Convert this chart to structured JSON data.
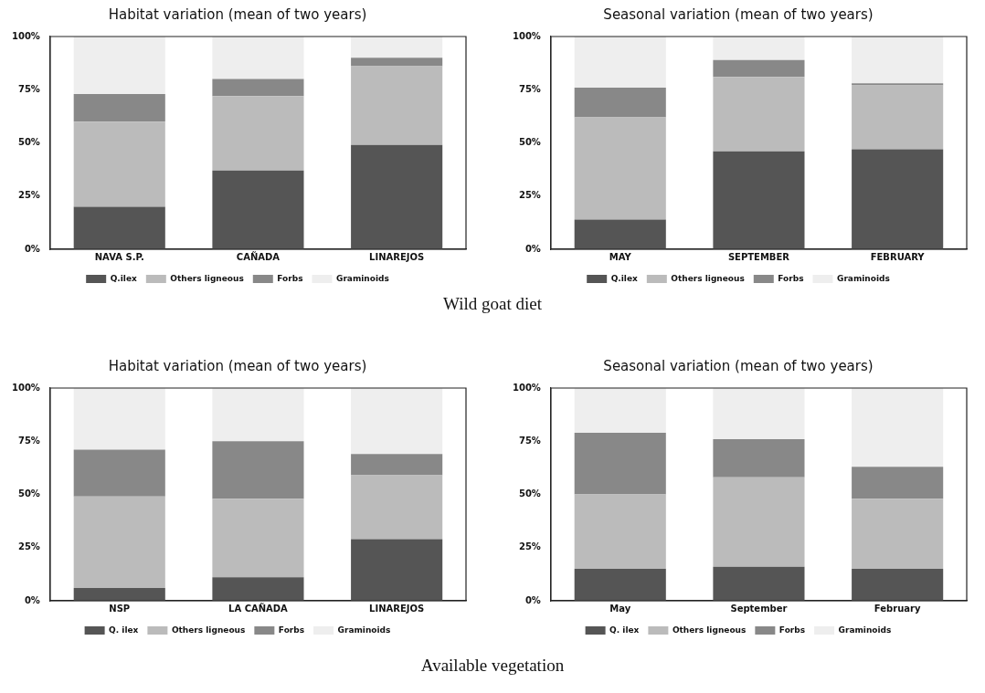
{
  "chart_data": [
    {
      "type": "bar",
      "title": "Habitat variation (mean of two years)",
      "categories": [
        "NAVA S.P.",
        "CAÑADA",
        "LINAREJOS"
      ],
      "stacked": true,
      "ylim": [
        0,
        100
      ],
      "yticks": [
        {
          "value": 0,
          "label": "0%"
        },
        {
          "value": 25,
          "label": "25%"
        },
        {
          "value": 50,
          "label": "50%"
        },
        {
          "value": 75,
          "label": "75%"
        },
        {
          "value": 100,
          "label": "100%"
        }
      ],
      "grid": false,
      "legend": "bottom",
      "annotations": [
        "Wild goat diet"
      ],
      "series": [
        {
          "name": "Q.ilex",
          "color": "#555555",
          "values": [
            20,
            37,
            49
          ]
        },
        {
          "name": "Others ligneous",
          "color": "#bbbbbb",
          "values": [
            40,
            35,
            37
          ]
        },
        {
          "name": "Forbs",
          "color": "#888888",
          "values": [
            13,
            8,
            4
          ]
        },
        {
          "name": "Graminoids",
          "color": "#eeeeee",
          "values": [
            27,
            20,
            10
          ]
        }
      ]
    },
    {
      "type": "bar",
      "title": "Seasonal variation (mean of two years)",
      "categories": [
        "MAY",
        "SEPTEMBER",
        "FEBRUARY"
      ],
      "stacked": true,
      "ylim": [
        0,
        100
      ],
      "yticks": [
        {
          "value": 0,
          "label": "0%"
        },
        {
          "value": 25,
          "label": "25%"
        },
        {
          "value": 50,
          "label": "50%"
        },
        {
          "value": 75,
          "label": "75%"
        },
        {
          "value": 100,
          "label": "100%"
        }
      ],
      "grid": false,
      "legend": "bottom",
      "series": [
        {
          "name": "Q.ilex",
          "color": "#555555",
          "values": [
            14,
            46,
            47
          ]
        },
        {
          "name": "Others ligneous",
          "color": "#bbbbbb",
          "values": [
            48,
            35,
            30
          ]
        },
        {
          "name": "Forbs",
          "color": "#888888",
          "values": [
            14,
            8,
            1
          ]
        },
        {
          "name": "Graminoids",
          "color": "#eeeeee",
          "values": [
            24,
            11,
            22
          ]
        }
      ]
    },
    {
      "type": "bar",
      "title": "Habitat variation (mean of two years)",
      "categories": [
        "NSP",
        "LA CAÑADA",
        "LINAREJOS"
      ],
      "stacked": true,
      "ylim": [
        0,
        100
      ],
      "yticks": [
        {
          "value": 0,
          "label": "0%"
        },
        {
          "value": 25,
          "label": "25%"
        },
        {
          "value": 50,
          "label": "50%"
        },
        {
          "value": 75,
          "label": "75%"
        },
        {
          "value": 100,
          "label": "100%"
        }
      ],
      "grid": false,
      "legend": "bottom",
      "annotations": [
        "Available vegetation"
      ],
      "series": [
        {
          "name": "Q. ilex",
          "color": "#555555",
          "values": [
            6,
            11,
            29
          ]
        },
        {
          "name": "Others ligneous",
          "color": "#bbbbbb",
          "values": [
            43,
            37,
            30
          ]
        },
        {
          "name": "Forbs",
          "color": "#888888",
          "values": [
            22,
            27,
            10
          ]
        },
        {
          "name": "Graminoids",
          "color": "#eeeeee",
          "values": [
            29,
            25,
            31
          ]
        }
      ]
    },
    {
      "type": "bar",
      "title": "Seasonal variation (mean of two years)",
      "categories": [
        "May",
        "September",
        "February"
      ],
      "stacked": true,
      "ylim": [
        0,
        100
      ],
      "yticks": [
        {
          "value": 0,
          "label": "0%"
        },
        {
          "value": 25,
          "label": "25%"
        },
        {
          "value": 50,
          "label": "50%"
        },
        {
          "value": 75,
          "label": "75%"
        },
        {
          "value": 100,
          "label": "100%"
        }
      ],
      "grid": false,
      "legend": "bottom",
      "series": [
        {
          "name": "Q. ilex",
          "color": "#555555",
          "values": [
            15,
            16,
            15
          ]
        },
        {
          "name": "Others ligneous",
          "color": "#bbbbbb",
          "values": [
            35,
            42,
            33
          ]
        },
        {
          "name": "Forbs",
          "color": "#888888",
          "values": [
            29,
            18,
            15
          ]
        },
        {
          "name": "Graminoids",
          "color": "#eeeeee",
          "values": [
            21,
            24,
            37
          ]
        }
      ]
    }
  ]
}
